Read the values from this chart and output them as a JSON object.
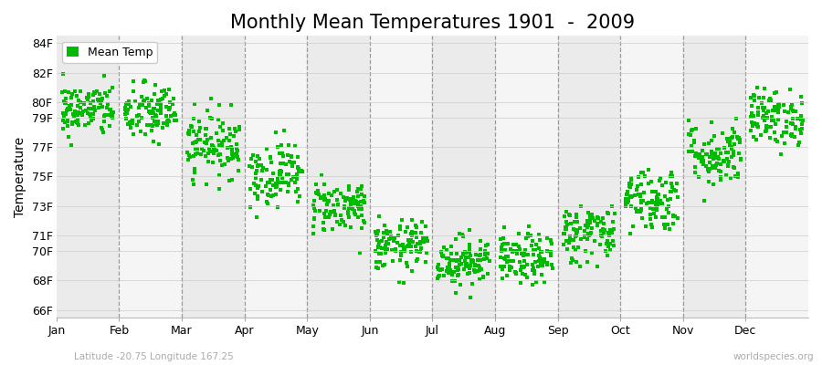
{
  "title": "Monthly Mean Temperatures 1901  -  2009",
  "ylabel": "Temperature",
  "xlabel_bottom": "Latitude -20.75 Longitude 167.25",
  "watermark": "worldspecies.org",
  "legend_label": "Mean Temp",
  "dot_color": "#00bb00",
  "background_color": "#ffffff",
  "plot_bg_even": "#ebebeb",
  "plot_bg_odd": "#f5f5f5",
  "yticks": [
    66,
    68,
    70,
    71,
    73,
    75,
    77,
    79,
    80,
    82,
    84
  ],
  "ytick_labels": [
    "66F",
    "68F",
    "70F",
    "71F",
    "73F",
    "75F",
    "77F",
    "79F",
    "80F",
    "82F",
    "84F"
  ],
  "ylim": [
    65.5,
    84.5
  ],
  "months": [
    "Jan",
    "Feb",
    "Mar",
    "Apr",
    "May",
    "Jun",
    "Jul",
    "Aug",
    "Sep",
    "Oct",
    "Nov",
    "Dec"
  ],
  "month_means": [
    79.5,
    79.3,
    77.2,
    75.2,
    73.0,
    70.3,
    69.3,
    69.4,
    71.2,
    73.5,
    76.5,
    79.0
  ],
  "month_stds": [
    0.9,
    1.0,
    1.1,
    1.1,
    0.9,
    0.85,
    0.85,
    0.85,
    1.0,
    1.1,
    1.1,
    0.95
  ],
  "n_years": 109,
  "title_fontsize": 15,
  "axis_fontsize": 10,
  "tick_fontsize": 9,
  "legend_fontsize": 9,
  "dot_size": 5,
  "dot_marker": "s"
}
